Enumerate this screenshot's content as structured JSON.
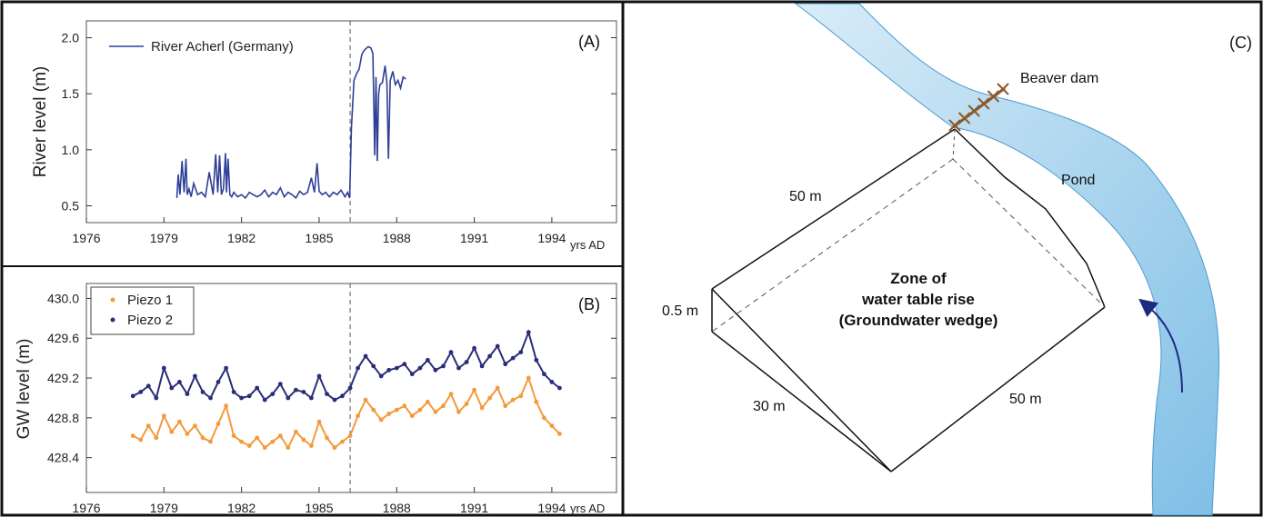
{
  "chart_data": [
    {
      "type": "line",
      "panel": "(A)",
      "ylabel": "River level (m)",
      "x_unit": "yrs AD",
      "xlim": [
        1976,
        1996.5
      ],
      "ylim": [
        0.35,
        2.15
      ],
      "xticks": [
        "1976",
        "1979",
        "1982",
        "1985",
        "1988",
        "1991",
        "1994"
      ],
      "yticks": [
        "0.5",
        "1.0",
        "1.5",
        "2.0"
      ],
      "event_year": 1986.2,
      "series": [
        {
          "name": "River Acherl (Germany)",
          "color": "#2f3f97",
          "x": [
            1979.5,
            1979.55,
            1979.62,
            1979.7,
            1979.78,
            1979.85,
            1979.9,
            1979.97,
            1980.05,
            1980.15,
            1980.3,
            1980.45,
            1980.6,
            1980.75,
            1980.9,
            1981.0,
            1981.08,
            1981.15,
            1981.22,
            1981.3,
            1981.38,
            1981.42,
            1981.48,
            1981.55,
            1981.62,
            1981.7,
            1981.85,
            1982.0,
            1982.15,
            1982.3,
            1982.45,
            1982.6,
            1982.75,
            1982.9,
            1983.05,
            1983.2,
            1983.35,
            1983.5,
            1983.65,
            1983.8,
            1983.95,
            1984.1,
            1984.25,
            1984.4,
            1984.55,
            1984.7,
            1984.82,
            1984.92,
            1985.0,
            1985.12,
            1985.25,
            1985.4,
            1985.55,
            1985.7,
            1985.85,
            1986.0,
            1986.1,
            1986.18,
            1986.25,
            1986.35,
            1986.45,
            1986.55,
            1986.65,
            1986.72,
            1986.8,
            1986.9,
            1987.0,
            1987.08,
            1987.15,
            1987.2,
            1987.25,
            1987.3,
            1987.35,
            1987.45,
            1987.55,
            1987.62,
            1987.68,
            1987.75,
            1987.85,
            1987.95,
            1988.05,
            1988.15,
            1988.25,
            1988.35
          ],
          "values": [
            0.57,
            0.78,
            0.6,
            0.9,
            0.62,
            0.92,
            0.6,
            0.65,
            0.58,
            0.7,
            0.6,
            0.62,
            0.58,
            0.8,
            0.6,
            0.96,
            0.62,
            0.95,
            0.6,
            0.65,
            0.97,
            0.62,
            0.92,
            0.6,
            0.58,
            0.62,
            0.58,
            0.6,
            0.57,
            0.62,
            0.6,
            0.58,
            0.6,
            0.64,
            0.58,
            0.62,
            0.6,
            0.66,
            0.58,
            0.62,
            0.6,
            0.57,
            0.63,
            0.6,
            0.62,
            0.75,
            0.62,
            0.88,
            0.63,
            0.6,
            0.62,
            0.58,
            0.62,
            0.6,
            0.64,
            0.58,
            0.62,
            0.57,
            1.2,
            1.62,
            1.68,
            1.72,
            1.85,
            1.88,
            1.9,
            1.92,
            1.91,
            1.86,
            0.95,
            1.65,
            0.9,
            1.5,
            1.58,
            1.6,
            1.75,
            1.6,
            0.92,
            1.62,
            1.7,
            1.58,
            1.62,
            1.55,
            1.65,
            1.63
          ]
        }
      ]
    },
    {
      "type": "scatter",
      "panel": "(B)",
      "ylabel": "GW level (m)",
      "x_unit": "yrs AD",
      "xlim": [
        1976,
        1996.5
      ],
      "ylim": [
        428.05,
        430.15
      ],
      "xticks": [
        "1976",
        "1979",
        "1982",
        "1985",
        "1988",
        "1991",
        "1994"
      ],
      "yticks": [
        "428.4",
        "428.8",
        "429.2",
        "429.6",
        "430.0"
      ],
      "event_year": 1986.2,
      "series": [
        {
          "name": "Piezo 1",
          "color": "#f39a3c",
          "x": [
            1977.8,
            1978.1,
            1978.4,
            1978.7,
            1979.0,
            1979.3,
            1979.6,
            1979.9,
            1980.2,
            1980.5,
            1980.8,
            1981.1,
            1981.4,
            1981.7,
            1982.0,
            1982.3,
            1982.6,
            1982.9,
            1983.2,
            1983.5,
            1983.8,
            1984.1,
            1984.4,
            1984.7,
            1985.0,
            1985.3,
            1985.6,
            1985.9,
            1986.2,
            1986.5,
            1986.8,
            1987.1,
            1987.4,
            1987.7,
            1988.0,
            1988.3,
            1988.6,
            1988.9,
            1989.2,
            1989.5,
            1989.8,
            1990.1,
            1990.4,
            1990.7,
            1991.0,
            1991.3,
            1991.6,
            1991.9,
            1992.2,
            1992.5,
            1992.8,
            1993.1,
            1993.4,
            1993.7,
            1994.0,
            1994.3
          ],
          "values": [
            428.62,
            428.58,
            428.72,
            428.6,
            428.82,
            428.66,
            428.76,
            428.64,
            428.72,
            428.6,
            428.56,
            428.74,
            428.92,
            428.62,
            428.56,
            428.52,
            428.6,
            428.5,
            428.56,
            428.62,
            428.5,
            428.66,
            428.58,
            428.52,
            428.76,
            428.6,
            428.5,
            428.56,
            428.62,
            428.82,
            428.98,
            428.88,
            428.78,
            428.84,
            428.88,
            428.92,
            428.82,
            428.88,
            428.96,
            428.86,
            428.92,
            429.04,
            428.86,
            428.94,
            429.08,
            428.9,
            429.0,
            429.1,
            428.92,
            428.98,
            429.02,
            429.2,
            428.96,
            428.8,
            428.72,
            428.64
          ]
        },
        {
          "name": "Piezo 2",
          "color": "#2a2e78",
          "x": [
            1977.8,
            1978.1,
            1978.4,
            1978.7,
            1979.0,
            1979.3,
            1979.6,
            1979.9,
            1980.2,
            1980.5,
            1980.8,
            1981.1,
            1981.4,
            1981.7,
            1982.0,
            1982.3,
            1982.6,
            1982.9,
            1983.2,
            1983.5,
            1983.8,
            1984.1,
            1984.4,
            1984.7,
            1985.0,
            1985.3,
            1985.6,
            1985.9,
            1986.2,
            1986.5,
            1986.8,
            1987.1,
            1987.4,
            1987.7,
            1988.0,
            1988.3,
            1988.6,
            1988.9,
            1989.2,
            1989.5,
            1989.8,
            1990.1,
            1990.4,
            1990.7,
            1991.0,
            1991.3,
            1991.6,
            1991.9,
            1992.2,
            1992.5,
            1992.8,
            1993.1,
            1993.4,
            1993.7,
            1994.0,
            1994.3
          ],
          "values": [
            429.02,
            429.06,
            429.12,
            429.0,
            429.3,
            429.1,
            429.16,
            429.04,
            429.22,
            429.06,
            429.0,
            429.16,
            429.3,
            429.06,
            429.0,
            429.02,
            429.1,
            428.98,
            429.04,
            429.14,
            429.0,
            429.08,
            429.06,
            429.0,
            429.22,
            429.04,
            428.98,
            429.02,
            429.1,
            429.3,
            429.42,
            429.32,
            429.22,
            429.28,
            429.3,
            429.34,
            429.24,
            429.3,
            429.38,
            429.28,
            429.32,
            429.46,
            429.3,
            429.36,
            429.5,
            429.32,
            429.42,
            429.52,
            429.34,
            429.4,
            429.46,
            429.66,
            429.38,
            429.24,
            429.16,
            429.1
          ]
        }
      ]
    }
  ],
  "panel_c": {
    "tag": "(C)",
    "dam_label": "Beaver dam",
    "pond_label": "Pond",
    "zone_line1": "Zone of",
    "zone_line2": "water table rise",
    "zone_line3": "(Groundwater wedge)",
    "dim_top": "50 m",
    "dim_right": "50 m",
    "dim_left": "30 m",
    "dim_height": "0.5 m",
    "river_color": "#a9d4ee",
    "river_edge": "#4b9ad0",
    "arrow_color": "#1f2b80",
    "dam_color": "#8b5a2b"
  }
}
